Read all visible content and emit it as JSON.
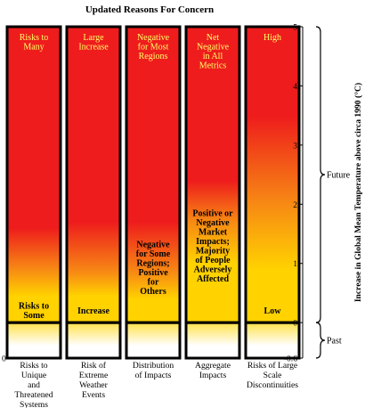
{
  "chart_data": {
    "type": "bar",
    "title": "Updated Reasons For Concern",
    "ylabel": "Increase in Global Mean Temperature above circa 1990 (°C)",
    "ylim": [
      -0.6,
      5
    ],
    "yticks": [
      "5",
      "4",
      "3",
      "2",
      "1",
      "0",
      "-0.6"
    ],
    "baseline_label": "0",
    "categories": [
      "Risks to Unique and Threatened Systems",
      "Risk of Extreme Weather Events",
      "Distribution of Impacts",
      "Aggregate Impacts",
      "Risks of Large Scale Discontinuities"
    ],
    "category_lines": [
      [
        "Risks to",
        "Unique",
        "and",
        "Threatened",
        "Systems"
      ],
      [
        "Risk of",
        "Extreme",
        "Weather",
        "Events"
      ],
      [
        "Distribution",
        "of Impacts"
      ],
      [
        "Aggregate",
        "Impacts"
      ],
      [
        "Risks of Large",
        "Scale",
        "Discontinuities"
      ]
    ],
    "periods": [
      {
        "label": "Future",
        "range": [
          0,
          5
        ]
      },
      {
        "label": "Past",
        "range": [
          -0.6,
          0
        ]
      }
    ],
    "colors": {
      "high": "#ee1c1c",
      "mid": "#ffd200",
      "low": "#ffffff",
      "high_text": "#ffff66",
      "low_text": "#000000",
      "border": "#000000"
    },
    "series": [
      {
        "category": "Risks to Unique and Threatened Systems",
        "yellow_start": 0.45,
        "yellow_end": 0.9,
        "red_by": 1.6,
        "labels": [
          {
            "lines": [
              "Risks to",
              "Many"
            ],
            "y": 4.82,
            "color": "high_text"
          },
          {
            "lines": [
              "Risks to",
              "Some"
            ],
            "y": 0.28,
            "color": "low_text"
          }
        ]
      },
      {
        "category": "Risk of Extreme Weather Events",
        "yellow_start": 0.45,
        "yellow_end": 0.85,
        "red_by": 1.7,
        "labels": [
          {
            "lines": [
              "Large",
              "Increase"
            ],
            "y": 4.82,
            "color": "high_text"
          },
          {
            "lines": [
              "Increase"
            ],
            "y": 0.2,
            "color": "low_text"
          }
        ]
      },
      {
        "category": "Distribution of Impacts",
        "yellow_start": 0.4,
        "yellow_end": 0.85,
        "red_by": 1.7,
        "labels": [
          {
            "lines": [
              "Negative",
              "for Most",
              "Regions"
            ],
            "y": 4.82,
            "color": "high_text"
          },
          {
            "lines": [
              "Negative",
              "for Some",
              "Regions;",
              "Positive",
              "for",
              "Others"
            ],
            "y": 1.32,
            "color": "low_text"
          }
        ]
      },
      {
        "category": "Aggregate Impacts",
        "yellow_start": 1.0,
        "yellow_end": 1.7,
        "red_by": 2.4,
        "labels": [
          {
            "lines": [
              "Net",
              "Negative",
              "in All",
              "Metrics"
            ],
            "y": 4.82,
            "color": "high_text"
          },
          {
            "lines": [
              "Positive or",
              "Negative",
              "Market",
              "Impacts;",
              "Majority",
              "of People",
              "Adversely",
              "Affected"
            ],
            "y": 1.85,
            "color": "low_text"
          }
        ]
      },
      {
        "category": "Risks of Large Scale Discontinuities",
        "yellow_start": 0.9,
        "yellow_end": 2.0,
        "red_by": 3.5,
        "labels": [
          {
            "lines": [
              "High"
            ],
            "y": 4.82,
            "color": "high_text"
          },
          {
            "lines": [
              "Low"
            ],
            "y": 0.2,
            "color": "low_text"
          }
        ]
      }
    ]
  }
}
